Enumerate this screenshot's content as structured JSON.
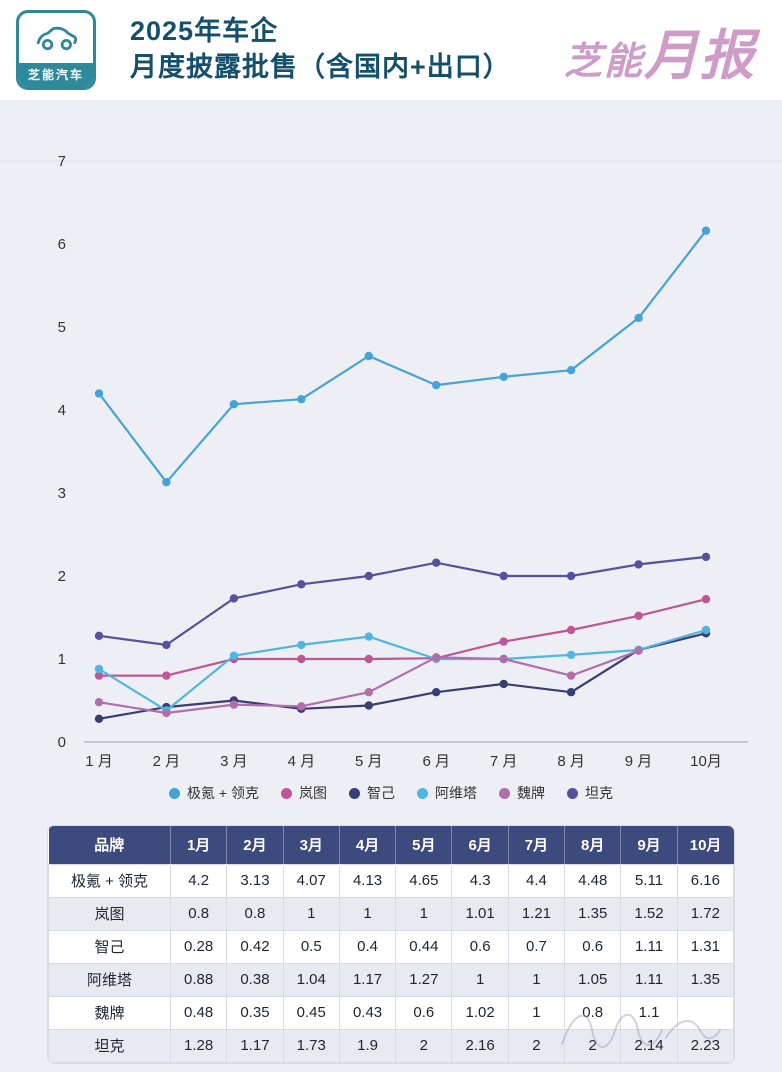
{
  "header": {
    "logo_text": "芝能汽车",
    "title_line1": "2025年车企",
    "title_line2": "月度披露批售（含国内+出口）",
    "brand_right_part1": "芝能",
    "brand_right_part2": "月报"
  },
  "chart_data": {
    "type": "line",
    "categories": [
      "1 月",
      "2 月",
      "3 月",
      "4 月",
      "5 月",
      "6 月",
      "7 月",
      "8 月",
      "9 月",
      "10月"
    ],
    "series": [
      {
        "name": "极氪 + 领克",
        "color": "#45a3d8",
        "values": [
          4.2,
          3.13,
          4.07,
          4.13,
          4.65,
          4.3,
          4.4,
          4.48,
          5.11,
          6.16
        ]
      },
      {
        "name": "岚图",
        "color": "#bf5796",
        "values": [
          0.8,
          0.8,
          1,
          1,
          1,
          1.01,
          1.21,
          1.35,
          1.52,
          1.72
        ]
      },
      {
        "name": "智己",
        "color": "#3a3d74",
        "values": [
          0.28,
          0.42,
          0.5,
          0.4,
          0.44,
          0.6,
          0.7,
          0.6,
          1.11,
          1.31
        ]
      },
      {
        "name": "阿维塔",
        "color": "#4fb5e2",
        "values": [
          0.88,
          0.38,
          1.04,
          1.17,
          1.27,
          1,
          1,
          1.05,
          1.11,
          1.35
        ]
      },
      {
        "name": "魏牌",
        "color": "#b06fab",
        "values": [
          0.48,
          0.35,
          0.45,
          0.43,
          0.6,
          1.02,
          1,
          0.8,
          1.1,
          null
        ]
      },
      {
        "name": "坦克",
        "color": "#55519c",
        "values": [
          1.28,
          1.17,
          1.73,
          1.9,
          2,
          2.16,
          2,
          2,
          2.14,
          2.23
        ]
      }
    ],
    "ylim": [
      0,
      7
    ],
    "yticks": [
      0,
      1,
      2,
      3,
      4,
      5,
      6,
      7
    ],
    "grid": "minimal",
    "legend_position": "bottom"
  },
  "table": {
    "header": [
      "品牌",
      "1月",
      "2月",
      "3月",
      "4月",
      "5月",
      "6月",
      "7月",
      "8月",
      "9月",
      "10月"
    ],
    "rows": [
      {
        "label": "极氪 + 领克",
        "values": [
          "4.2",
          "3.13",
          "4.07",
          "4.13",
          "4.65",
          "4.3",
          "4.4",
          "4.48",
          "5.11",
          "6.16"
        ]
      },
      {
        "label": "岚图",
        "values": [
          "0.8",
          "0.8",
          "1",
          "1",
          "1",
          "1.01",
          "1.21",
          "1.35",
          "1.52",
          "1.72"
        ]
      },
      {
        "label": "智己",
        "values": [
          "0.28",
          "0.42",
          "0.5",
          "0.4",
          "0.44",
          "0.6",
          "0.7",
          "0.6",
          "1.11",
          "1.31"
        ]
      },
      {
        "label": "阿维塔",
        "values": [
          "0.88",
          "0.38",
          "1.04",
          "1.17",
          "1.27",
          "1",
          "1",
          "1.05",
          "1.11",
          "1.35"
        ]
      },
      {
        "label": "魏牌",
        "values": [
          "0.48",
          "0.35",
          "0.45",
          "0.43",
          "0.6",
          "1.02",
          "1",
          "0.8",
          "1.1",
          ""
        ]
      },
      {
        "label": "坦克",
        "values": [
          "1.28",
          "1.17",
          "1.73",
          "1.9",
          "2",
          "2.16",
          "2",
          "2",
          "2.14",
          "2.23"
        ]
      }
    ]
  },
  "colors": {
    "header_title": "#14506b",
    "brand_pink": "#cf9cc8",
    "logo_teal": "#2e8a9a",
    "table_header_bg": "#3d4a7d",
    "row_stripe": "#e8eaf2",
    "page_bg": "#edeff4"
  }
}
